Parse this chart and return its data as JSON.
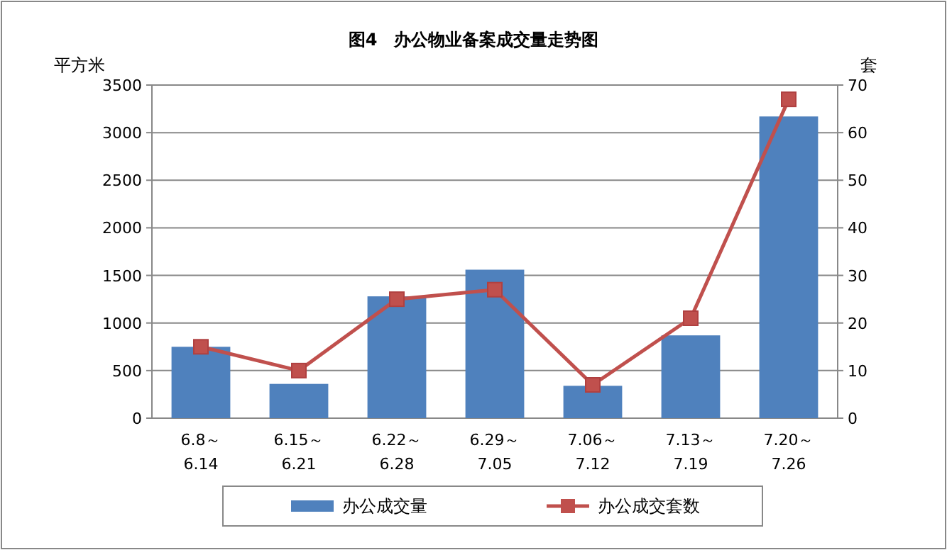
{
  "chart_data": {
    "type": "bar",
    "title": "图4　办公物业备案成交量走势图",
    "ylabel": "平方米",
    "y2label": "套",
    "categories": [
      "6.8～6.14",
      "6.15～6.21",
      "6.22～6.28",
      "6.29～7.05",
      "7.06～7.12",
      "7.13～7.19",
      "7.20～7.26"
    ],
    "series": [
      {
        "name": "办公成交量",
        "color": "#4f81bd",
        "values": [
          750,
          360,
          1280,
          1560,
          340,
          870,
          3170
        ]
      },
      {
        "name": "办公成交套数",
        "type": "line",
        "axis": "y2",
        "color": "#c0504d",
        "values": [
          15,
          10,
          25,
          27,
          7,
          21,
          67
        ]
      }
    ],
    "ylim": [
      0,
      3500
    ],
    "yticks": [
      0,
      500,
      1000,
      1500,
      2000,
      2500,
      3000,
      3500
    ],
    "y2lim": [
      0,
      70
    ],
    "y2ticks": [
      0,
      10,
      20,
      30,
      40,
      50,
      60,
      70
    ],
    "grid": "y",
    "legend": "bottom",
    "marker": "square",
    "line_style": "solid"
  }
}
